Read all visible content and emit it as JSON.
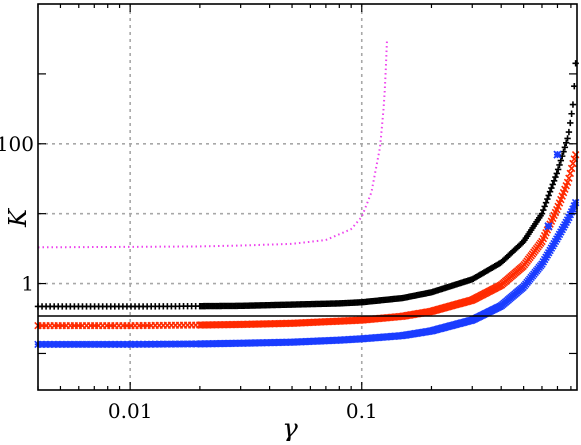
{
  "chart_data": {
    "type": "line",
    "xlabel": "γ",
    "ylabel": "K",
    "x_scale": "log",
    "y_scale": "log",
    "xlim": [
      0.004,
      0.85
    ],
    "ylim": [
      0.03,
      10000
    ],
    "grid": true,
    "x_ticks": [
      {
        "value": 0.01,
        "label": "0.01"
      },
      {
        "value": 0.1,
        "label": "0.1"
      }
    ],
    "y_ticks": [
      {
        "value": 1,
        "label": "1"
      },
      {
        "value": 10,
        "label": ""
      },
      {
        "value": 100,
        "label": "100"
      }
    ],
    "colors": {
      "black": "#000000",
      "red": "#ff2a00",
      "blue": "#1a3cff",
      "magenta": "#ee44ee",
      "grid": "#a8a8a8"
    },
    "series": [
      {
        "key": "black",
        "style": "plus-markers",
        "points": [
          [
            0.004,
            0.47
          ],
          [
            0.01,
            0.47
          ],
          [
            0.02,
            0.475
          ],
          [
            0.03,
            0.48
          ],
          [
            0.05,
            0.5
          ],
          [
            0.08,
            0.52
          ],
          [
            0.1,
            0.54
          ],
          [
            0.15,
            0.62
          ],
          [
            0.2,
            0.75
          ],
          [
            0.3,
            1.15
          ],
          [
            0.4,
            2.0
          ],
          [
            0.5,
            4.0
          ],
          [
            0.6,
            10.0
          ],
          [
            0.7,
            40.0
          ],
          [
            0.78,
            130.0
          ],
          [
            0.82,
            400.0
          ],
          [
            0.85,
            3000.0
          ]
        ]
      },
      {
        "key": "red",
        "style": "cross-markers",
        "points": [
          [
            0.004,
            0.25
          ],
          [
            0.01,
            0.25
          ],
          [
            0.02,
            0.255
          ],
          [
            0.03,
            0.26
          ],
          [
            0.05,
            0.27
          ],
          [
            0.08,
            0.29
          ],
          [
            0.1,
            0.3
          ],
          [
            0.15,
            0.34
          ],
          [
            0.2,
            0.4
          ],
          [
            0.3,
            0.58
          ],
          [
            0.4,
            0.95
          ],
          [
            0.5,
            1.8
          ],
          [
            0.6,
            4.0
          ],
          [
            0.7,
            12.0
          ],
          [
            0.78,
            30.0
          ],
          [
            0.82,
            55.0
          ],
          [
            0.85,
            80.0
          ]
        ]
      },
      {
        "key": "blue",
        "style": "star-markers",
        "points": [
          [
            0.004,
            0.135
          ],
          [
            0.01,
            0.135
          ],
          [
            0.02,
            0.137
          ],
          [
            0.03,
            0.14
          ],
          [
            0.05,
            0.145
          ],
          [
            0.08,
            0.155
          ],
          [
            0.1,
            0.162
          ],
          [
            0.15,
            0.18
          ],
          [
            0.2,
            0.21
          ],
          [
            0.3,
            0.3
          ],
          [
            0.4,
            0.48
          ],
          [
            0.5,
            0.9
          ],
          [
            0.6,
            1.9
          ],
          [
            0.7,
            4.5
          ],
          [
            0.78,
            8.5
          ],
          [
            0.82,
            12.0
          ],
          [
            0.85,
            16.0
          ]
        ]
      },
      {
        "key": "magenta",
        "style": "dotted-line",
        "points": [
          [
            0.004,
            3.3
          ],
          [
            0.01,
            3.35
          ],
          [
            0.02,
            3.4
          ],
          [
            0.03,
            3.5
          ],
          [
            0.05,
            3.7
          ],
          [
            0.07,
            4.2
          ],
          [
            0.09,
            6.0
          ],
          [
            0.1,
            9.0
          ],
          [
            0.11,
            20.0
          ],
          [
            0.12,
            90.0
          ],
          [
            0.125,
            400.0
          ],
          [
            0.128,
            2000.0
          ],
          [
            0.13,
            10000.0
          ]
        ]
      },
      {
        "key": "blue",
        "style": "isolated-stars",
        "points": [
          [
            0.7,
            70.0
          ],
          [
            0.64,
            6.6
          ]
        ]
      }
    ]
  }
}
